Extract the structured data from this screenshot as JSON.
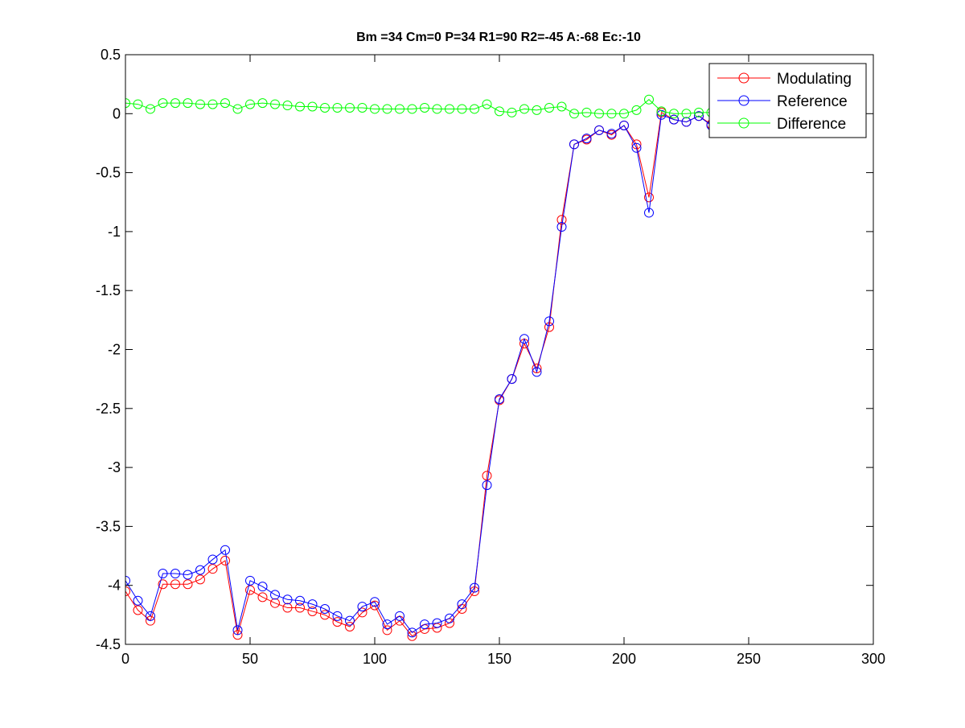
{
  "chart_data": {
    "type": "line",
    "title": "Bm =34  Cm=0  P=34  R1=90  R2=-45  A:-68  Ec:-10",
    "xlabel": "",
    "ylabel": "",
    "xlim": [
      0,
      300
    ],
    "ylim": [
      -4.5,
      0.5
    ],
    "xticks": [
      0,
      50,
      100,
      150,
      200,
      250,
      300
    ],
    "xtick_labels": [
      "0",
      "50",
      "100",
      "150",
      "200",
      "250",
      "300"
    ],
    "yticks": [
      0.5,
      0,
      -0.5,
      -1,
      -1.5,
      -2,
      -2.5,
      -3,
      -3.5,
      -4,
      -4.5
    ],
    "ytick_labels": [
      "0.5",
      "0",
      "-0.5",
      "-1",
      "-1.5",
      "-2",
      "-2.5",
      "-3",
      "-3.5",
      "-4",
      "-4.5"
    ],
    "grid": false,
    "legend_position": "top-right",
    "marker": "circle",
    "x": [
      0,
      5,
      10,
      15,
      20,
      25,
      30,
      35,
      40,
      45,
      50,
      55,
      60,
      65,
      70,
      75,
      80,
      85,
      90,
      95,
      100,
      105,
      110,
      115,
      120,
      125,
      130,
      135,
      140,
      145,
      150,
      155,
      160,
      165,
      170,
      175,
      180,
      185,
      190,
      195,
      200,
      205,
      210,
      215,
      220,
      225,
      230,
      235
    ],
    "series": [
      {
        "name": "Modulating",
        "color": "#ff0000",
        "values": [
          -4.05,
          -4.21,
          -4.3,
          -3.99,
          -3.99,
          -3.99,
          -3.95,
          -3.86,
          -3.79,
          -4.42,
          -4.04,
          -4.1,
          -4.15,
          -4.19,
          -4.19,
          -4.22,
          -4.25,
          -4.31,
          -4.35,
          -4.23,
          -4.17,
          -4.38,
          -4.3,
          -4.43,
          -4.37,
          -4.36,
          -4.32,
          -4.2,
          -4.05,
          -3.07,
          -2.43,
          -2.25,
          -1.95,
          -2.16,
          -1.81,
          -0.9,
          -0.26,
          -0.22,
          -0.14,
          -0.18,
          -0.1,
          -0.26,
          -0.71,
          0.01,
          -0.05,
          -0.07,
          -0.02,
          -0.09
        ]
      },
      {
        "name": "Reference",
        "color": "#0000ff",
        "values": [
          -3.96,
          -4.13,
          -4.26,
          -3.9,
          -3.9,
          -3.91,
          -3.87,
          -3.78,
          -3.7,
          -4.38,
          -3.96,
          -4.01,
          -4.08,
          -4.12,
          -4.13,
          -4.16,
          -4.2,
          -4.26,
          -4.3,
          -4.18,
          -4.14,
          -4.33,
          -4.26,
          -4.4,
          -4.33,
          -4.32,
          -4.28,
          -4.16,
          -4.02,
          -3.15,
          -2.42,
          -2.25,
          -1.91,
          -2.19,
          -1.76,
          -0.96,
          -0.26,
          -0.21,
          -0.14,
          -0.17,
          -0.1,
          -0.29,
          -0.84,
          -0.01,
          -0.05,
          -0.07,
          -0.02,
          -0.1
        ]
      },
      {
        "name": "Difference",
        "color": "#00ff00",
        "values": [
          0.09,
          0.08,
          0.04,
          0.09,
          0.09,
          0.09,
          0.08,
          0.08,
          0.09,
          0.04,
          0.08,
          0.09,
          0.08,
          0.07,
          0.06,
          0.06,
          0.05,
          0.05,
          0.05,
          0.05,
          0.04,
          0.04,
          0.04,
          0.04,
          0.05,
          0.04,
          0.04,
          0.04,
          0.04,
          0.08,
          0.02,
          0.01,
          0.04,
          0.03,
          0.05,
          0.06,
          0.0,
          0.01,
          0.0,
          0.0,
          0.0,
          0.03,
          0.12,
          0.02,
          0.0,
          0.0,
          0.01,
          0.01
        ]
      }
    ]
  }
}
